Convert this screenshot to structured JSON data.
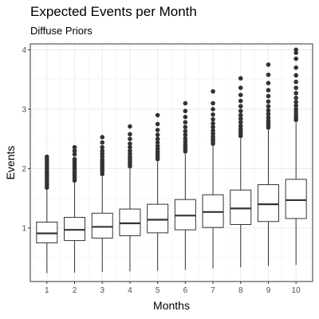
{
  "chart_data": {
    "type": "boxplot",
    "title": "Expected Events per Month",
    "subtitle": "Diffuse Priors",
    "xlabel": "Months",
    "ylabel": "Events",
    "categories": [
      "1",
      "2",
      "3",
      "4",
      "5",
      "6",
      "7",
      "8",
      "9",
      "10"
    ],
    "y_ticks": [
      1,
      2,
      3,
      4
    ],
    "ylim": [
      0.1,
      4.1
    ],
    "grid": true,
    "boxes": [
      {
        "month": "1",
        "min": 0.24,
        "q1": 0.75,
        "median": 0.91,
        "q3": 1.1,
        "max": 1.64,
        "outliers": [
          1.68,
          1.72,
          1.76,
          1.8,
          1.84,
          1.88,
          1.92,
          1.96,
          2.0,
          2.04,
          2.08,
          2.12,
          2.16,
          2.2
        ]
      },
      {
        "month": "2",
        "min": 0.25,
        "q1": 0.79,
        "median": 0.97,
        "q3": 1.18,
        "max": 1.76,
        "outliers": [
          1.8,
          1.84,
          1.88,
          1.92,
          1.96,
          2.0,
          2.04,
          2.08,
          2.12,
          2.16,
          2.24,
          2.3,
          2.36
        ]
      },
      {
        "month": "3",
        "min": 0.26,
        "q1": 0.83,
        "median": 1.02,
        "q3": 1.25,
        "max": 1.87,
        "outliers": [
          1.91,
          1.95,
          1.99,
          2.03,
          2.07,
          2.11,
          2.15,
          2.2,
          2.25,
          2.3,
          2.36,
          2.44,
          2.53
        ]
      },
      {
        "month": "4",
        "min": 0.27,
        "q1": 0.87,
        "median": 1.08,
        "q3": 1.32,
        "max": 2.0,
        "outliers": [
          2.04,
          2.08,
          2.12,
          2.16,
          2.2,
          2.25,
          2.3,
          2.36,
          2.42,
          2.5,
          2.58,
          2.71
        ]
      },
      {
        "month": "5",
        "min": 0.28,
        "q1": 0.92,
        "median": 1.14,
        "q3": 1.4,
        "max": 2.12,
        "outliers": [
          2.16,
          2.2,
          2.24,
          2.28,
          2.33,
          2.38,
          2.44,
          2.5,
          2.57,
          2.65,
          2.75,
          2.9
        ]
      },
      {
        "month": "6",
        "min": 0.3,
        "q1": 0.97,
        "median": 1.21,
        "q3": 1.48,
        "max": 2.25,
        "outliers": [
          2.29,
          2.33,
          2.37,
          2.41,
          2.46,
          2.51,
          2.57,
          2.63,
          2.7,
          2.78,
          2.87,
          2.97,
          3.1
        ]
      },
      {
        "month": "7",
        "min": 0.32,
        "q1": 1.01,
        "median": 1.27,
        "q3": 1.56,
        "max": 2.38,
        "outliers": [
          2.42,
          2.46,
          2.5,
          2.54,
          2.59,
          2.64,
          2.7,
          2.76,
          2.83,
          2.91,
          3.0,
          3.1,
          3.3
        ]
      },
      {
        "month": "8",
        "min": 0.34,
        "q1": 1.06,
        "median": 1.33,
        "q3": 1.64,
        "max": 2.51,
        "outliers": [
          2.55,
          2.59,
          2.63,
          2.67,
          2.72,
          2.78,
          2.84,
          2.9,
          2.97,
          3.05,
          3.14,
          3.24,
          3.36,
          3.52
        ]
      },
      {
        "month": "9",
        "min": 0.36,
        "q1": 1.11,
        "median": 1.4,
        "q3": 1.73,
        "max": 2.65,
        "outliers": [
          2.69,
          2.73,
          2.77,
          2.81,
          2.86,
          2.92,
          2.98,
          3.05,
          3.13,
          3.22,
          3.32,
          3.44,
          3.58,
          3.75
        ]
      },
      {
        "month": "10",
        "min": 0.38,
        "q1": 1.16,
        "median": 1.47,
        "q3": 1.82,
        "max": 2.78,
        "outliers": [
          2.82,
          2.86,
          2.9,
          2.95,
          3.0,
          3.06,
          3.12,
          3.19,
          3.27,
          3.36,
          3.46,
          3.57,
          3.7,
          3.85,
          3.95,
          4.0
        ]
      }
    ]
  }
}
